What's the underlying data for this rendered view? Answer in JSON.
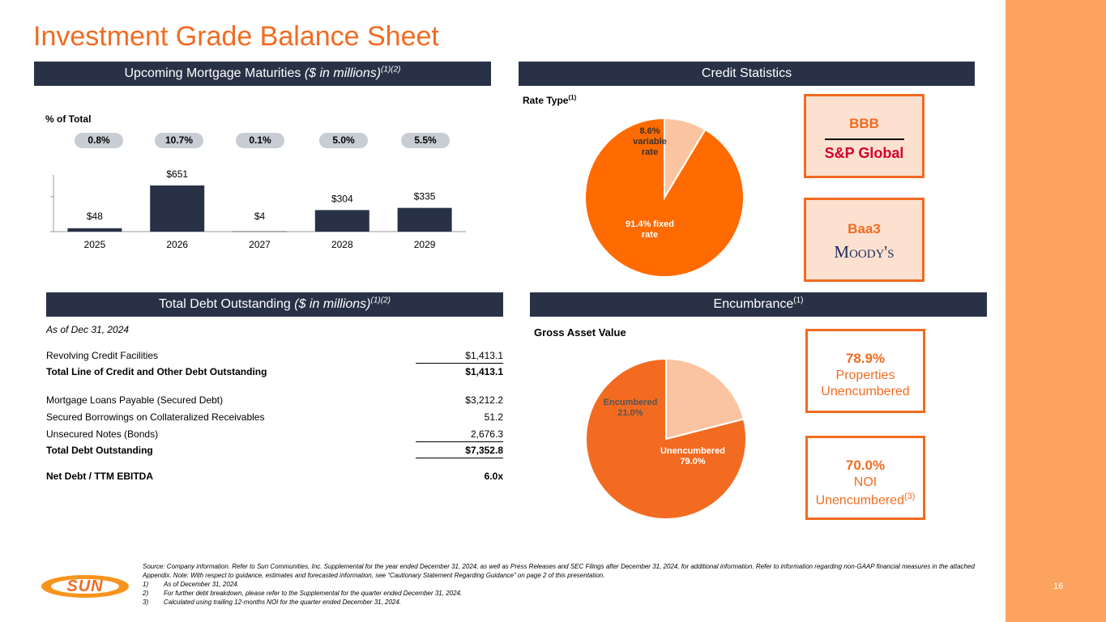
{
  "title": "Investment Grade Balance Sheet",
  "page_number": "16",
  "maturities": {
    "header": "Upcoming Mortgage Maturities",
    "header_italic": "($ in millions)",
    "header_sup": "(1)(2)",
    "pct_label": "% of Total",
    "percents": [
      "0.8%",
      "10.7%",
      "0.1%",
      "5.0%",
      "5.5%"
    ]
  },
  "credit": {
    "header": "Credit Statistics",
    "rate_type_label": "Rate Type",
    "rate_type_sup": "(1)",
    "sp_rating": "BBB",
    "sp_name": "S&P Global",
    "moodys_rating": "Baa3",
    "moodys_name": "Moody's"
  },
  "debt": {
    "header": "Total Debt Outstanding",
    "header_italic": "($ in millions)",
    "header_sup": "(1)(2)",
    "as_of": "As of Dec 31, 2024",
    "rows": [
      {
        "label": "Revolving Credit Facilities",
        "value": "$1,413.1"
      },
      {
        "label": "Total Line of Credit and Other Debt Outstanding",
        "value": "$1,413.1"
      },
      {
        "label": "Mortgage Loans Payable (Secured Debt)",
        "value": "$3,212.2"
      },
      {
        "label": "Secured Borrowings on Collateralized Receivables",
        "value": "51.2"
      },
      {
        "label": "Unsecured Notes (Bonds)",
        "value": "2,676.3"
      },
      {
        "label": "Total Debt Outstanding",
        "value": "$7,352.8"
      },
      {
        "label": "Net Debt / TTM EBITDA",
        "value": "6.0x"
      }
    ]
  },
  "encumbrance": {
    "header": "Encumbrance",
    "header_sup": "(1)",
    "gav_label": "Gross Asset Value",
    "box1": {
      "value": "78.9%",
      "line1": "Properties",
      "line2": "Unencumbered"
    },
    "box2": {
      "value": "70.0%",
      "line1": "NOI",
      "line2": "Unencumbered",
      "sup": "(3)"
    }
  },
  "logo": "SUN",
  "footer": {
    "source": "Source: Company information. Refer to Sun Communities, Inc. Supplemental for the year ended December 31, 2024, as well as Press Releases and SEC Filings after December 31, 2024, for additional information. Refer to information regarding non-GAAP financial measures in the attached Appendix. Note: With respect to guidance, estimates and forecasted information, see “Cautionary Statement Regarding Guidance” on page 2 of this presentation.",
    "notes": [
      {
        "n": "1)",
        "text": "As of December 31, 2024."
      },
      {
        "n": "2)",
        "text": "For further debt breakdown, please refer to the Supplemental for the quarter ended December 31, 2024."
      },
      {
        "n": "3)",
        "text": "Calculated using trailing 12-months NOI for the quarter ended December 31, 2024."
      }
    ]
  },
  "colors": {
    "orange": "#f26b21",
    "navy": "#283146",
    "light_orange": "#fbc4a0",
    "strip": "#fca45f"
  },
  "chart_data": [
    {
      "type": "bar",
      "categories": [
        "2025",
        "2026",
        "2027",
        "2028",
        "2029"
      ],
      "values": [
        48,
        651,
        4,
        304,
        335
      ],
      "data_labels": [
        "$48",
        "$651",
        "$4",
        "$304",
        "$335"
      ],
      "title": "",
      "xlabel": "",
      "ylabel": "",
      "ylim": [
        0,
        651
      ]
    },
    {
      "type": "pie",
      "labels": [
        "91.4% fixed rate",
        "8.6% variable rate"
      ],
      "values": [
        91.4,
        8.6
      ],
      "colors": [
        "#ff6b00",
        "#fbc4a0"
      ]
    },
    {
      "type": "pie",
      "labels": [
        "Unencumbered 79.0%",
        "Encumbered 21.0%"
      ],
      "values": [
        79.0,
        21.0
      ],
      "colors": [
        "#f26b21",
        "#fbc4a0"
      ]
    }
  ]
}
